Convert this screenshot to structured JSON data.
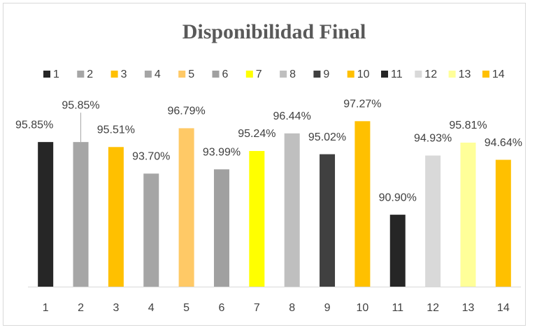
{
  "chart_data": {
    "type": "bar",
    "title": "Disponibilidad Final",
    "categories": [
      "1",
      "2",
      "3",
      "4",
      "5",
      "6",
      "7",
      "8",
      "9",
      "10",
      "11",
      "12",
      "13",
      "14"
    ],
    "values": [
      95.85,
      95.85,
      95.51,
      93.7,
      96.79,
      93.99,
      95.24,
      96.44,
      95.02,
      97.27,
      90.9,
      94.93,
      95.81,
      94.64
    ],
    "value_labels": [
      "95.85%",
      "95.85%",
      "95.51%",
      "93.70%",
      "96.79%",
      "93.99%",
      "95.24%",
      "96.44%",
      "95.02%",
      "97.27%",
      "90.90%",
      "94.93%",
      "95.81%",
      "94.64%"
    ],
    "colors": [
      "#262626",
      "#a6a6a6",
      "#ffc000",
      "#a5a5a5",
      "#ffc966",
      "#a0a0a0",
      "#ffff00",
      "#bfbfbf",
      "#404040",
      "#ffc000",
      "#262626",
      "#d9d9d9",
      "#ffff99",
      "#ffc000"
    ],
    "ylim": [
      86,
      98
    ]
  }
}
